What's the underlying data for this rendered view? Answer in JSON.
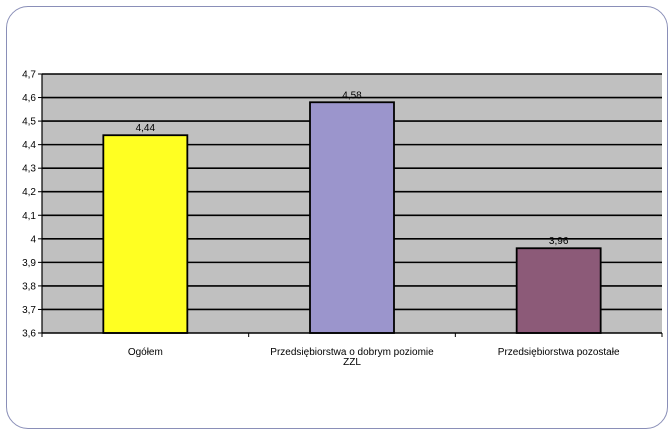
{
  "chart_data": {
    "type": "bar",
    "title": "",
    "xlabel": "",
    "ylabel": "",
    "categories": [
      [
        "Ogółem"
      ],
      [
        "Przedsiębiorstwa o dobrym poziomie",
        "ZZL"
      ],
      [
        "Przedsiębiorstwa pozostałe"
      ]
    ],
    "values": [
      4.44,
      4.58,
      3.96
    ],
    "value_labels": [
      "4,44",
      "4,58",
      "3,96"
    ],
    "ylim": [
      3.6,
      4.7
    ],
    "yticks": [
      3.6,
      3.7,
      3.8,
      3.9,
      4.0,
      4.1,
      4.2,
      4.3,
      4.4,
      4.5,
      4.6,
      4.7
    ],
    "ytick_labels": [
      "3,6",
      "3,7",
      "3,8",
      "3,9",
      "4",
      "4,1",
      "4,2",
      "4,3",
      "4,4",
      "4,5",
      "4,6",
      "4,7"
    ],
    "grid": true,
    "legend": "none",
    "colors": {
      "plot_background": "#c0c0c0",
      "bars": [
        "#ffff22",
        "#9b95cc",
        "#8c5a78"
      ],
      "bar_edge": "#000000",
      "frame_border": "#8a8fb8"
    }
  }
}
